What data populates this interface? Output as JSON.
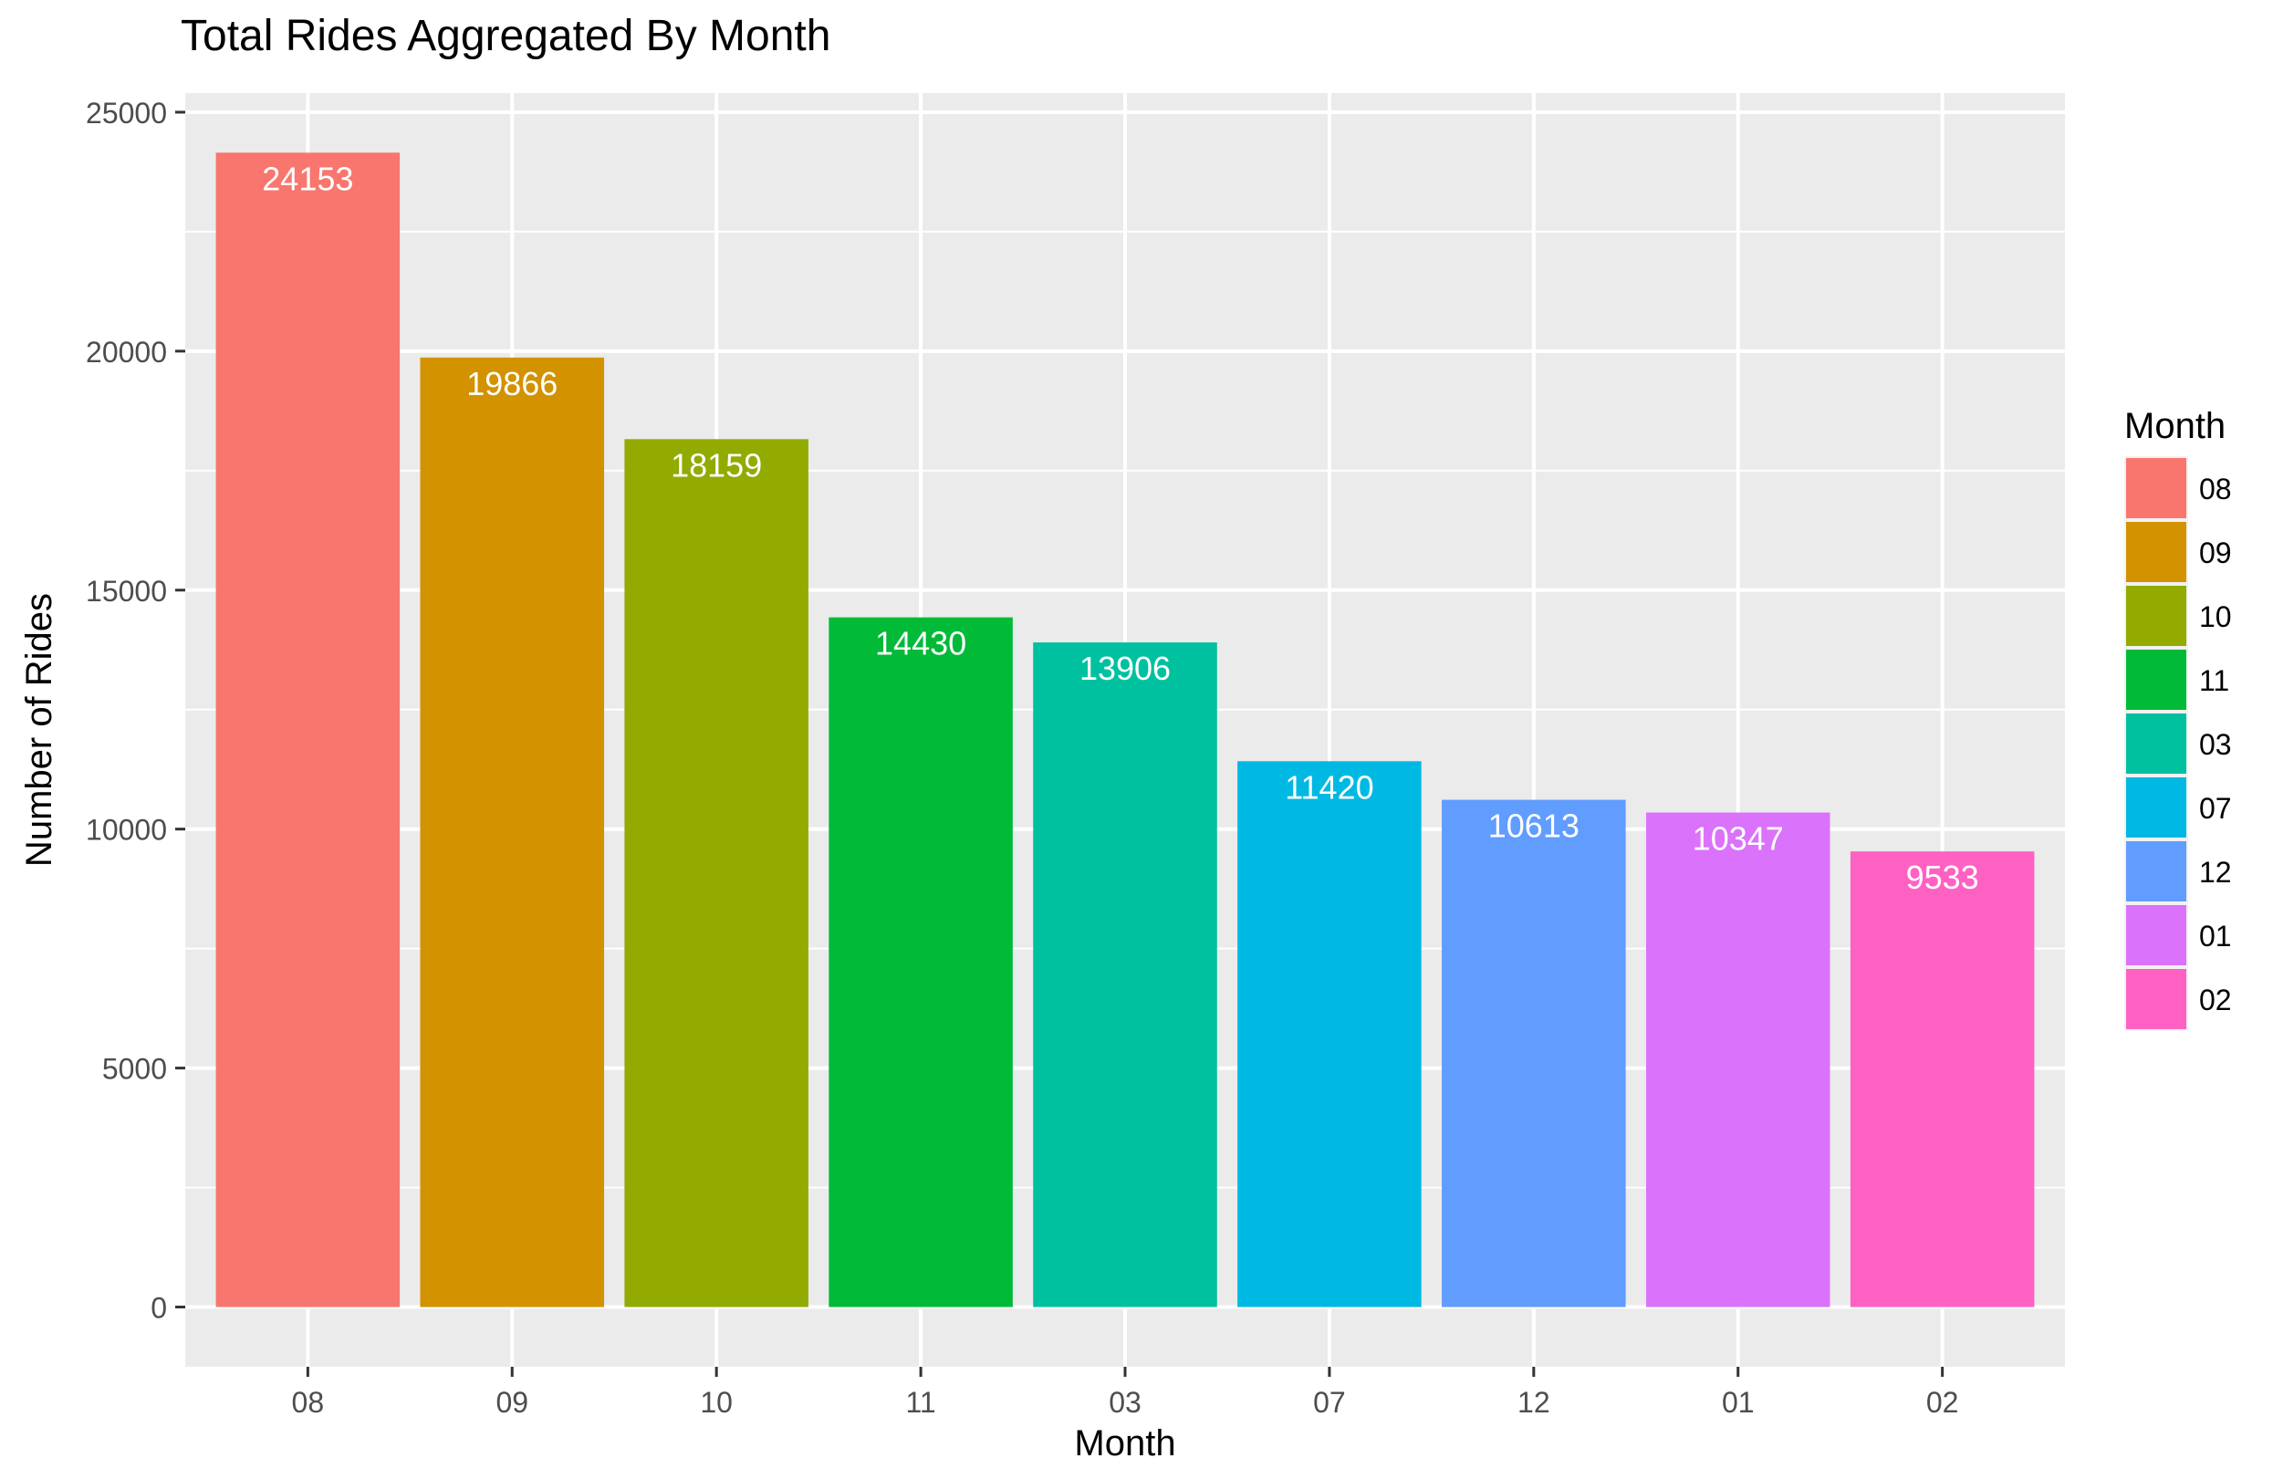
{
  "chart_data": {
    "type": "bar",
    "title": "Total Rides Aggregated By Month",
    "xlabel": "Month",
    "ylabel": "Number of Rides",
    "categories": [
      "08",
      "09",
      "10",
      "11",
      "03",
      "07",
      "12",
      "01",
      "02"
    ],
    "values": [
      24153,
      19866,
      18159,
      14430,
      13906,
      11420,
      10613,
      10347,
      9533
    ],
    "data_labels": [
      "24153",
      "19866",
      "18159",
      "14430",
      "13906",
      "11420",
      "10613",
      "10347",
      "9533"
    ],
    "colors": [
      "#F8766D",
      "#D39200",
      "#93AA00",
      "#00BA38",
      "#00C19F",
      "#00B9E3",
      "#619CFF",
      "#DB72FB",
      "#FF61C3"
    ],
    "ylim": [
      -1250,
      25400
    ],
    "yticks": [
      0,
      5000,
      10000,
      15000,
      20000,
      25000
    ],
    "ytick_labels": [
      "0",
      "5000",
      "10000",
      "15000",
      "20000",
      "25000"
    ],
    "grid": true,
    "panel_background": "#EBEBEB",
    "legend": {
      "title": "Month",
      "position": "right",
      "entries": [
        "08",
        "09",
        "10",
        "11",
        "03",
        "07",
        "12",
        "01",
        "02"
      ]
    }
  }
}
